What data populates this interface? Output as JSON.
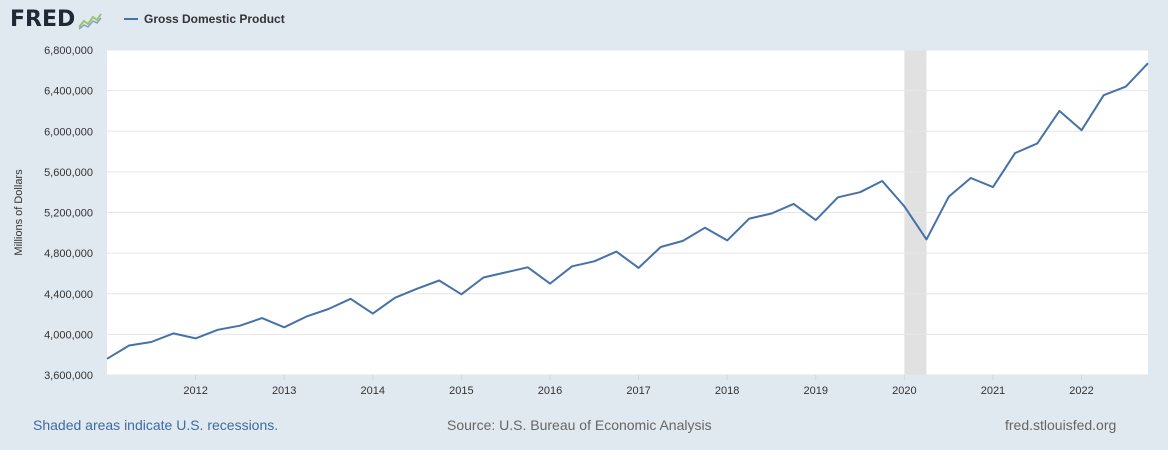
{
  "logo": {
    "text": "FRED",
    "icon": "line-chart-icon"
  },
  "legend": {
    "label": "Gross Domestic Product",
    "color": "#4572a7"
  },
  "footer": {
    "left": "Shaded areas indicate U.S. recessions.",
    "center": "Source: U.S. Bureau of Economic Analysis",
    "right": "fred.stlouisfed.org"
  },
  "colors": {
    "line": "#4572a7",
    "recession": "#e1e1e1",
    "plot_bg": "#ffffff",
    "page_bg": "#e1e9f0",
    "grid": "#e6e6e6"
  },
  "chart_data": {
    "type": "line",
    "title": "",
    "xlabel": "",
    "ylabel": "Millions of Dollars",
    "ylim": [
      3600000,
      6800000
    ],
    "xlim": [
      2011.0,
      2022.75
    ],
    "y_ticks": [
      3600000,
      4000000,
      4400000,
      4800000,
      5200000,
      5600000,
      6000000,
      6400000,
      6800000
    ],
    "y_tick_labels": [
      "3,600,000",
      "4,000,000",
      "4,400,000",
      "4,800,000",
      "5,200,000",
      "5,600,000",
      "6,000,000",
      "6,400,000",
      "6,800,000"
    ],
    "x_ticks": [
      2012,
      2013,
      2014,
      2015,
      2016,
      2017,
      2018,
      2019,
      2020,
      2021,
      2022
    ],
    "x_tick_labels": [
      "2012",
      "2013",
      "2014",
      "2015",
      "2016",
      "2017",
      "2018",
      "2019",
      "2020",
      "2021",
      "2022"
    ],
    "grid": true,
    "legend_position": "top-left",
    "recessions": [
      [
        2020.0,
        2020.25
      ]
    ],
    "series": [
      {
        "name": "Gross Domestic Product",
        "x": [
          "2011-01-01",
          "2011-04-01",
          "2011-07-01",
          "2011-10-01",
          "2012-01-01",
          "2012-04-01",
          "2012-07-01",
          "2012-10-01",
          "2013-01-01",
          "2013-04-01",
          "2013-07-01",
          "2013-10-01",
          "2014-01-01",
          "2014-04-01",
          "2014-07-01",
          "2014-10-01",
          "2015-01-01",
          "2015-04-01",
          "2015-07-01",
          "2015-10-01",
          "2016-01-01",
          "2016-04-01",
          "2016-07-01",
          "2016-10-01",
          "2017-01-01",
          "2017-04-01",
          "2017-07-01",
          "2017-10-01",
          "2018-01-01",
          "2018-04-01",
          "2018-07-01",
          "2018-10-01",
          "2019-01-01",
          "2019-04-01",
          "2019-07-01",
          "2019-10-01",
          "2020-01-01",
          "2020-04-01",
          "2020-07-01",
          "2020-10-01",
          "2021-01-01",
          "2021-04-01",
          "2021-07-01",
          "2021-10-01",
          "2022-01-01",
          "2022-04-01",
          "2022-07-01",
          "2022-10-01"
        ],
        "values": [
          3760000,
          3890000,
          3925000,
          4010000,
          3960000,
          4045000,
          4085000,
          4160000,
          4070000,
          4175000,
          4250000,
          4350000,
          4205000,
          4360000,
          4450000,
          4530000,
          4395000,
          4560000,
          4610000,
          4660000,
          4500000,
          4670000,
          4720000,
          4815000,
          4655000,
          4860000,
          4920000,
          5050000,
          4925000,
          5140000,
          5190000,
          5285000,
          5125000,
          5350000,
          5400000,
          5510000,
          5260000,
          4935000,
          5355000,
          5540000,
          5450000,
          5785000,
          5880000,
          6200000,
          6010000,
          6355000,
          6440000,
          6670000
        ]
      }
    ]
  }
}
